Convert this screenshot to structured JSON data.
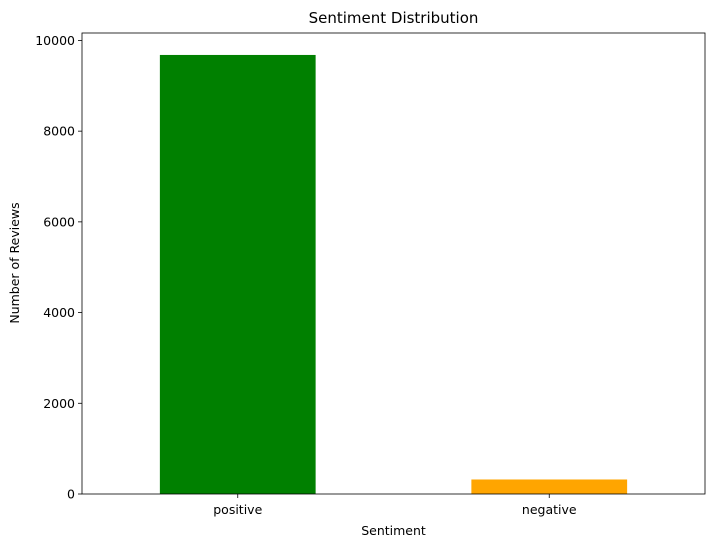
{
  "chart_data": {
    "type": "bar",
    "title": "Sentiment Distribution",
    "xlabel": "Sentiment",
    "ylabel": "Number of Reviews",
    "categories": [
      "positive",
      "negative"
    ],
    "values": [
      9680,
      320
    ],
    "colors": [
      "#008000",
      "#FFA500"
    ],
    "ylim": [
      0,
      10164
    ],
    "yticks": [
      0,
      2000,
      4000,
      6000,
      8000,
      10000
    ],
    "grid": false,
    "legend": "none"
  }
}
